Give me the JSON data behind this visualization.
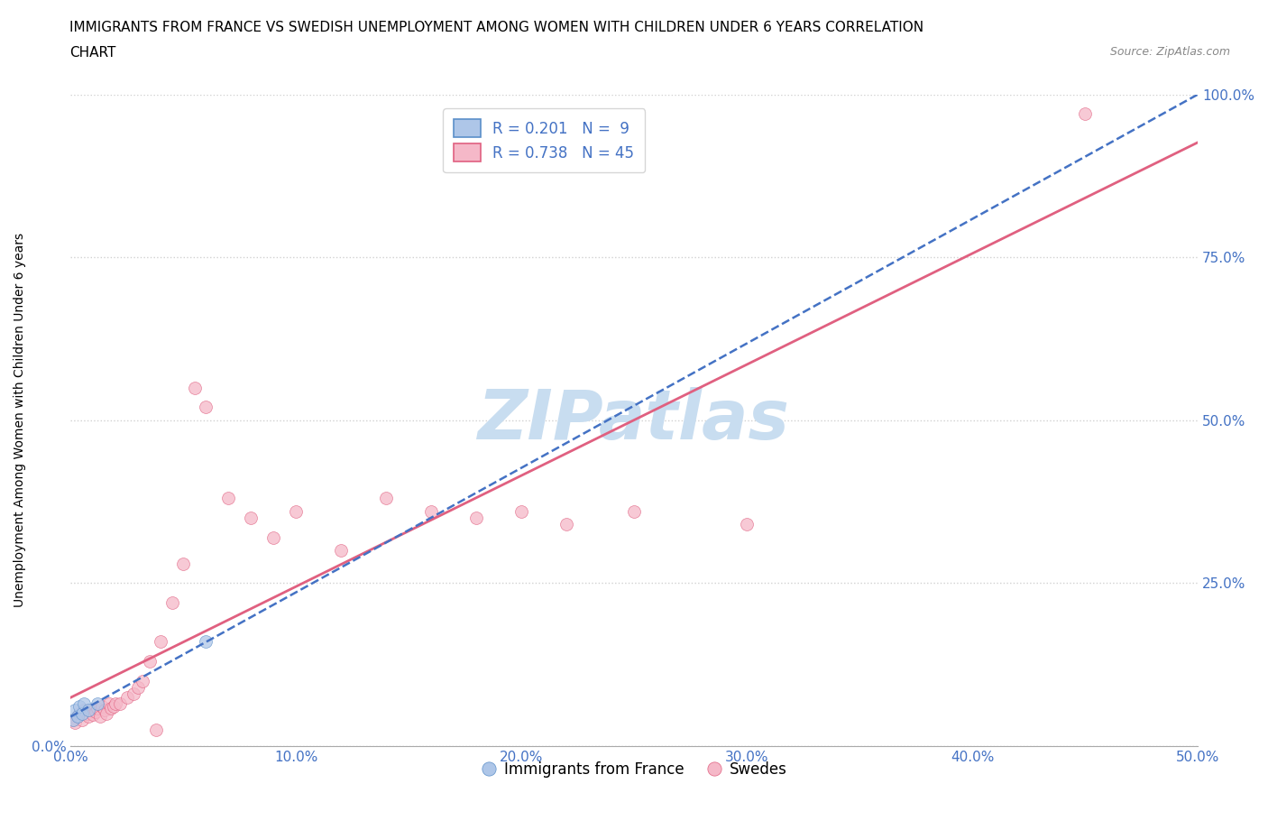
{
  "title_line1": "IMMIGRANTS FROM FRANCE VS SWEDISH UNEMPLOYMENT AMONG WOMEN WITH CHILDREN UNDER 6 YEARS CORRELATION",
  "title_line2": "CHART",
  "source_text": "Source: ZipAtlas.com",
  "ylabel": "Unemployment Among Women with Children Under 6 years",
  "xlim": [
    0.0,
    0.5
  ],
  "ylim": [
    0.0,
    1.0
  ],
  "xticks": [
    0.0,
    0.1,
    0.2,
    0.3,
    0.4,
    0.5
  ],
  "yticks": [
    0.0,
    0.25,
    0.5,
    0.75,
    1.0
  ],
  "xtick_labels": [
    "0.0%",
    "10.0%",
    "20.0%",
    "30.0%",
    "40.0%",
    "50.0%"
  ],
  "ytick_labels_left": [
    "0.0%",
    "",
    "",
    "",
    ""
  ],
  "ytick_labels_right": [
    "",
    "25.0%",
    "50.0%",
    "75.0%",
    "100.0%"
  ],
  "blue_scatter_x": [
    0.001,
    0.002,
    0.003,
    0.004,
    0.005,
    0.006,
    0.008,
    0.012,
    0.06
  ],
  "blue_scatter_y": [
    0.04,
    0.055,
    0.045,
    0.06,
    0.05,
    0.065,
    0.055,
    0.065,
    0.16
  ],
  "pink_scatter_x": [
    0.001,
    0.002,
    0.003,
    0.004,
    0.005,
    0.006,
    0.007,
    0.008,
    0.009,
    0.01,
    0.011,
    0.012,
    0.013,
    0.014,
    0.015,
    0.016,
    0.017,
    0.018,
    0.019,
    0.02,
    0.022,
    0.025,
    0.028,
    0.03,
    0.032,
    0.035,
    0.038,
    0.04,
    0.045,
    0.05,
    0.055,
    0.06,
    0.07,
    0.08,
    0.09,
    0.1,
    0.12,
    0.14,
    0.16,
    0.18,
    0.2,
    0.22,
    0.25,
    0.3,
    0.45
  ],
  "pink_scatter_y": [
    0.04,
    0.035,
    0.045,
    0.05,
    0.04,
    0.055,
    0.05,
    0.045,
    0.055,
    0.048,
    0.052,
    0.058,
    0.045,
    0.06,
    0.055,
    0.05,
    0.065,
    0.058,
    0.06,
    0.065,
    0.065,
    0.075,
    0.08,
    0.09,
    0.1,
    0.13,
    0.025,
    0.16,
    0.22,
    0.28,
    0.55,
    0.52,
    0.38,
    0.35,
    0.32,
    0.36,
    0.3,
    0.38,
    0.36,
    0.35,
    0.36,
    0.34,
    0.36,
    0.34,
    0.97
  ],
  "blue_R": 0.201,
  "blue_N": 9,
  "pink_R": 0.738,
  "pink_N": 45,
  "blue_fill_color": "#aec6e8",
  "blue_edge_color": "#5b8fc9",
  "pink_fill_color": "#f5b8c8",
  "pink_edge_color": "#e06080",
  "scatter_alpha": 0.75,
  "scatter_size": 100,
  "blue_line_color": "#4472c4",
  "pink_line_color": "#e06080",
  "watermark_text": "ZIPatlas",
  "watermark_color": "#c8ddf0",
  "background_color": "#ffffff",
  "grid_color": "#cccccc",
  "title_fontsize": 11,
  "axis_label_fontsize": 10,
  "tick_fontsize": 11,
  "legend_fontsize": 12,
  "right_tick_color": "#4472c4"
}
